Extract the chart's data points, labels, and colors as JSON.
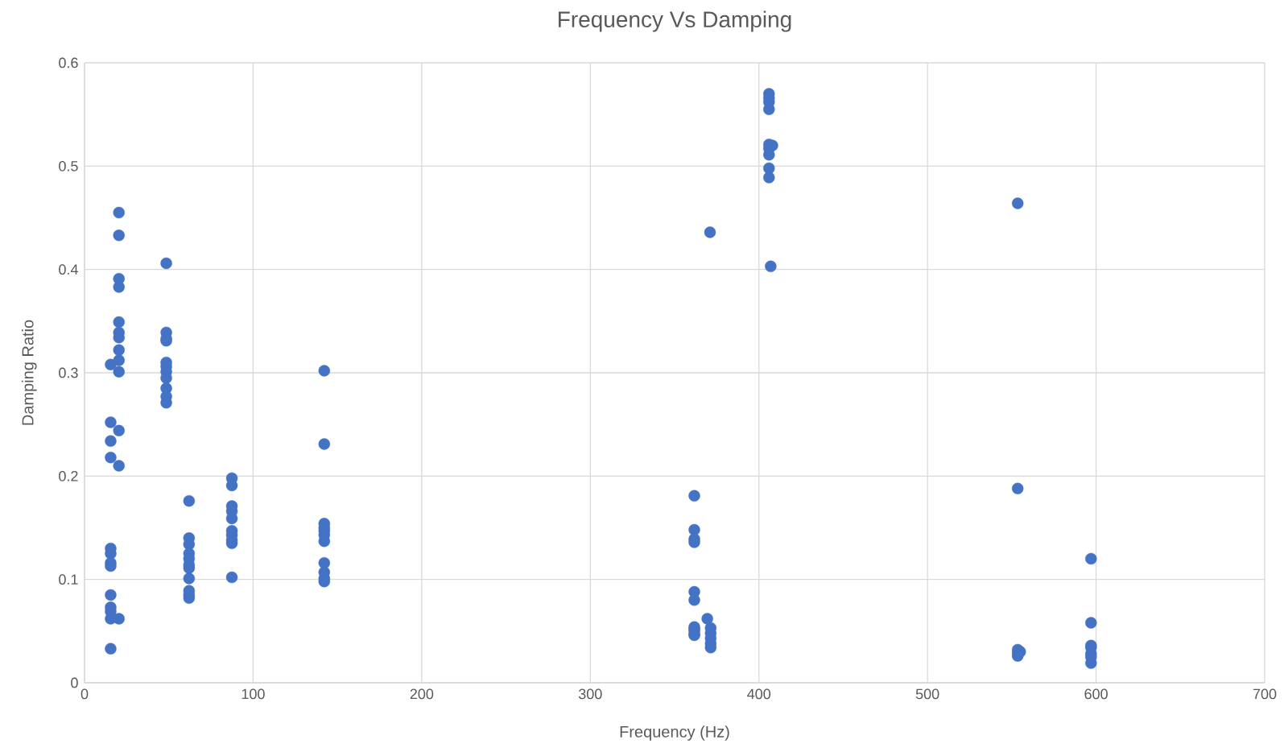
{
  "chart_data": {
    "type": "scatter",
    "title": "Frequency Vs Damping",
    "xlabel": "Frequency (Hz)",
    "ylabel": "Damping Ratio",
    "xlim": [
      0,
      700
    ],
    "xticks": [
      0,
      100,
      200,
      300,
      400,
      500,
      600,
      700
    ],
    "ylim": [
      0,
      0.6
    ],
    "yticks": [
      0,
      0.1,
      0.2,
      0.3,
      0.4,
      0.5,
      0.6
    ],
    "grid": true,
    "series": [
      {
        "color": "#4472c4",
        "x": [
          15.5,
          15.5,
          15.5,
          15.5,
          15.5,
          15.5,
          15.5,
          15.5,
          15.5,
          15.5,
          15.5,
          15.5,
          15.5,
          20.4,
          20.4,
          20.4,
          20.4,
          20.4,
          20.4,
          20.4,
          20.4,
          20.4,
          20.4,
          20.4,
          20.4,
          20.4,
          48.5,
          48.5,
          48.5,
          48.5,
          48.5,
          48.5,
          48.5,
          48.5,
          48.5,
          48.5,
          48.5,
          62,
          62,
          62,
          62,
          62,
          62,
          62,
          62,
          62,
          62,
          62,
          87.4,
          87.4,
          87.4,
          87.4,
          87.4,
          87.4,
          87.4,
          87.4,
          87.4,
          87.4,
          142.2,
          142.2,
          142.2,
          142.2,
          142.2,
          142.2,
          142.2,
          142.2,
          142.2,
          142.2,
          142.2,
          361.7,
          361.7,
          361.7,
          361.7,
          361.7,
          361.7,
          361.7,
          361.7,
          361.7,
          361.7,
          361.7,
          369.4,
          371.4,
          371.4,
          371.4,
          371.4,
          371.4,
          371,
          406,
          406,
          406,
          406,
          406,
          406,
          406,
          406,
          406,
          407,
          408,
          553.5,
          553.5,
          553.5,
          553.5,
          553.5,
          555,
          597,
          597,
          597,
          597,
          597,
          597,
          597
        ],
        "values": [
          0.308,
          0.252,
          0.234,
          0.218,
          0.13,
          0.125,
          0.116,
          0.113,
          0.085,
          0.073,
          0.069,
          0.062,
          0.033,
          0.455,
          0.433,
          0.391,
          0.383,
          0.349,
          0.339,
          0.334,
          0.322,
          0.312,
          0.301,
          0.244,
          0.21,
          0.062,
          0.406,
          0.339,
          0.333,
          0.331,
          0.31,
          0.306,
          0.301,
          0.295,
          0.285,
          0.277,
          0.271,
          0.176,
          0.14,
          0.134,
          0.125,
          0.12,
          0.114,
          0.111,
          0.101,
          0.089,
          0.085,
          0.082,
          0.198,
          0.191,
          0.171,
          0.166,
          0.159,
          0.147,
          0.143,
          0.138,
          0.135,
          0.102,
          0.302,
          0.231,
          0.154,
          0.15,
          0.147,
          0.143,
          0.137,
          0.116,
          0.107,
          0.101,
          0.098,
          0.181,
          0.148,
          0.139,
          0.136,
          0.088,
          0.08,
          0.054,
          0.052,
          0.05,
          0.047,
          0.046,
          0.062,
          0.053,
          0.048,
          0.043,
          0.038,
          0.034,
          0.436,
          0.57,
          0.566,
          0.562,
          0.555,
          0.521,
          0.517,
          0.511,
          0.498,
          0.489,
          0.403,
          0.52,
          0.464,
          0.188,
          0.032,
          0.029,
          0.026,
          0.03,
          0.12,
          0.058,
          0.036,
          0.034,
          0.028,
          0.025,
          0.019
        ]
      }
    ]
  }
}
